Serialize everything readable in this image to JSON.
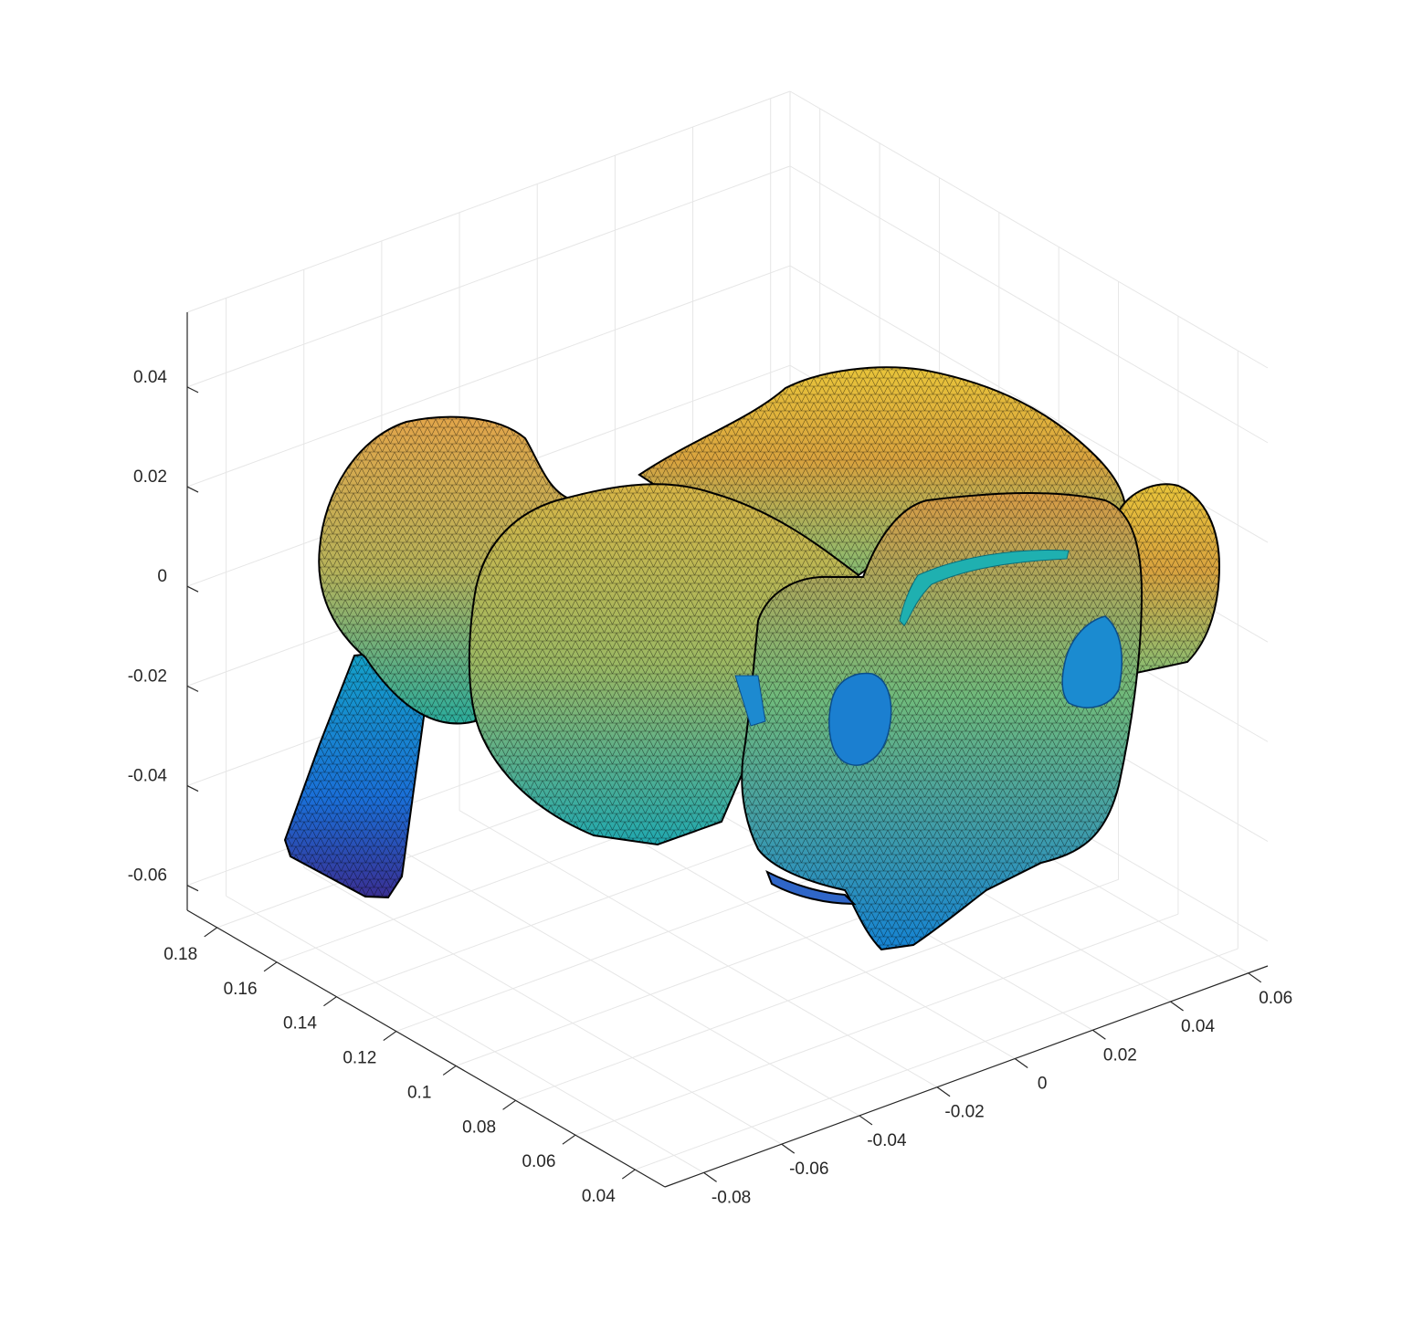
{
  "chart_data": {
    "type": "surface-3d-trimesh",
    "title": "",
    "xlabel": "",
    "ylabel": "",
    "zlabel": "",
    "x_axis": {
      "ticks": [
        -0.08,
        -0.06,
        -0.04,
        -0.02,
        0,
        0.02,
        0.04,
        0.06
      ],
      "labels": [
        "-0.08",
        "-0.06",
        "-0.04",
        "-0.02",
        "0",
        "0.02",
        "0.04",
        "0.06"
      ],
      "range": [
        -0.09,
        0.065
      ]
    },
    "y_axis": {
      "ticks": [
        0.04,
        0.06,
        0.08,
        0.1,
        0.12,
        0.14,
        0.16,
        0.18
      ],
      "labels": [
        "0.04",
        "0.06",
        "0.08",
        "0.1",
        "0.12",
        "0.14",
        "0.16",
        "0.18"
      ],
      "range": [
        0.03,
        0.19
      ]
    },
    "z_axis": {
      "ticks": [
        -0.06,
        -0.04,
        -0.02,
        0,
        0.02,
        0.04
      ],
      "labels": [
        "-0.06",
        "-0.04",
        "-0.02",
        "0",
        "0.02",
        "0.04"
      ],
      "range": [
        -0.065,
        0.055
      ]
    },
    "grid": true,
    "colormap": "parula",
    "edge_color": "#000000",
    "colormap_stops": [
      "#352a87",
      "#0f5cdd",
      "#1481d6",
      "#06a4ca",
      "#2eb7a4",
      "#87bf77",
      "#d1bb59",
      "#fec832",
      "#f9fb0e"
    ]
  }
}
